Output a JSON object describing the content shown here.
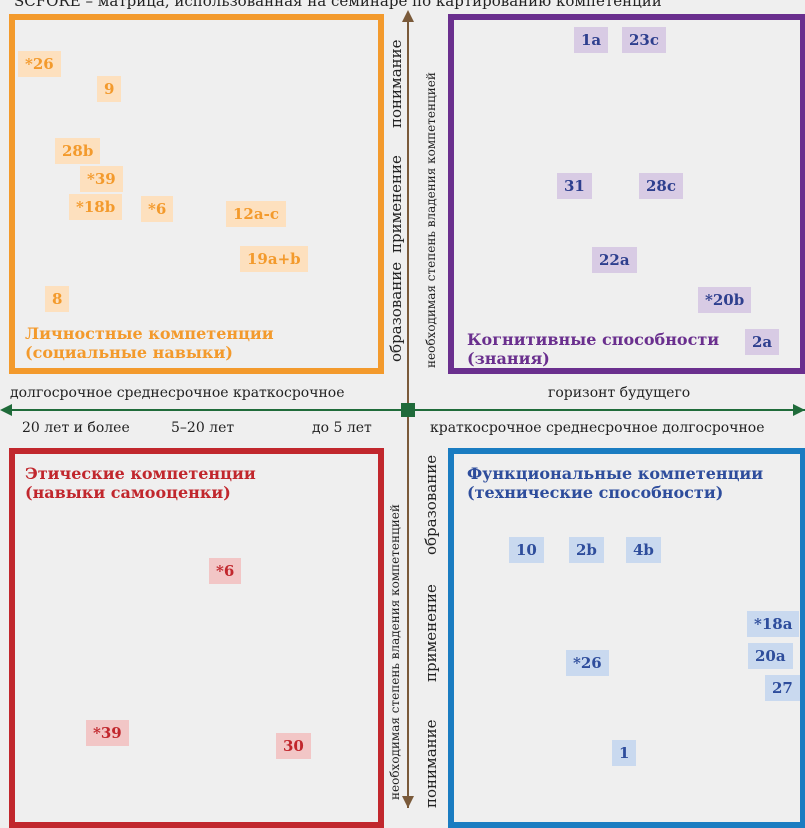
{
  "caption": "SCFORE – матрица, использованная на семинаре по картированию компетенций",
  "horizontal_axis": {
    "left_terms": "долгосрочное  среднесрочное  краткосрочное",
    "left_years": [
      "20 лет и более",
      "5–20 лет",
      "до 5 лет"
    ],
    "right_title": "горизонт будущего",
    "right_terms": "краткосрочное  среднесрочное  долгосрочное"
  },
  "vertical_axis": {
    "label": "необходимая степень владения компетенцией",
    "top_levels": [
      "образование",
      "применение",
      "понимание"
    ],
    "bottom_levels": [
      "понимание",
      "применение",
      "образование"
    ]
  },
  "quadrants": {
    "personal": {
      "title_line1": "Личностные компетенции",
      "title_line2": "(социальные навыки)",
      "color": "#f39a2c",
      "tags": [
        "*26",
        "9",
        "28b",
        "*39",
        "*18b",
        "*6",
        "12a-c",
        "19a+b",
        "8"
      ]
    },
    "cognitive": {
      "title_line1": "Когнитивные способности",
      "title_line2": "(знания)",
      "color": "#6a2f8e",
      "tags": [
        "1a",
        "23c",
        "31",
        "28c",
        "22a",
        "*20b",
        "2a"
      ]
    },
    "ethical": {
      "title_line1": "Этические компетенции",
      "title_line2": "(навыки самооценки)",
      "color": "#c1272d",
      "tags": [
        "*6",
        "*39",
        "30"
      ]
    },
    "functional": {
      "title_line1": "Функциональные компетенции",
      "title_line2": "(технические способности)",
      "color": "#1a7cc1",
      "tags": [
        "10",
        "2b",
        "4b",
        "*18a",
        "20a",
        "*26",
        "27",
        "1"
      ]
    }
  }
}
